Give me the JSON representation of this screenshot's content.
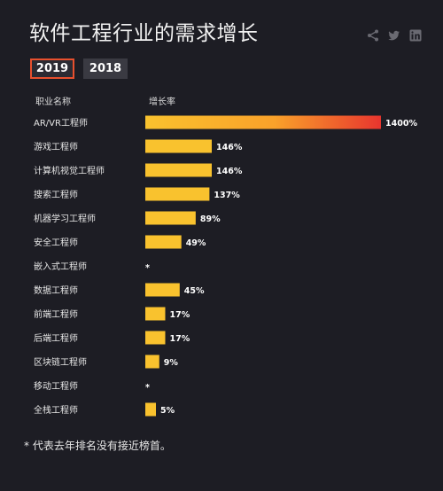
{
  "title": "软件工程行业的需求增长",
  "share": {
    "icons": [
      "share-icon",
      "twitter-icon",
      "linkedin-icon"
    ],
    "icon_color": "#6a6a72"
  },
  "tabs": [
    {
      "label": "2019",
      "active": true
    },
    {
      "label": "2018",
      "active": false
    }
  ],
  "colors": {
    "background": "#1d1d24",
    "bar_yellow": "#f9c22e",
    "bar_orange": "#f9a12a",
    "bar_red": "#e8352e",
    "active_tab_border": "#e8502e"
  },
  "chart_data": {
    "type": "bar",
    "orientation": "horizontal",
    "title": "软件工程行业的需求增长",
    "column_headers": {
      "category": "职业名称",
      "value": "增长率"
    },
    "categories": [
      "AR/VR工程师",
      "游戏工程师",
      "计算机视觉工程师",
      "搜索工程师",
      "机器学习工程师",
      "安全工程师",
      "嵌入式工程师",
      "数据工程师",
      "前端工程师",
      "后端工程师",
      "区块链工程师",
      "移动工程师",
      "全栈工程师"
    ],
    "values": [
      1400,
      146,
      146,
      137,
      89,
      49,
      null,
      45,
      17,
      17,
      9,
      null,
      5
    ],
    "labels": [
      "1400%",
      "146%",
      "146%",
      "137%",
      "89%",
      "49%",
      "*",
      "45%",
      "17%",
      "17%",
      "9%",
      "*",
      "5%"
    ],
    "unit": "%"
  },
  "footnote": "* 代表去年排名没有接近榜首。"
}
